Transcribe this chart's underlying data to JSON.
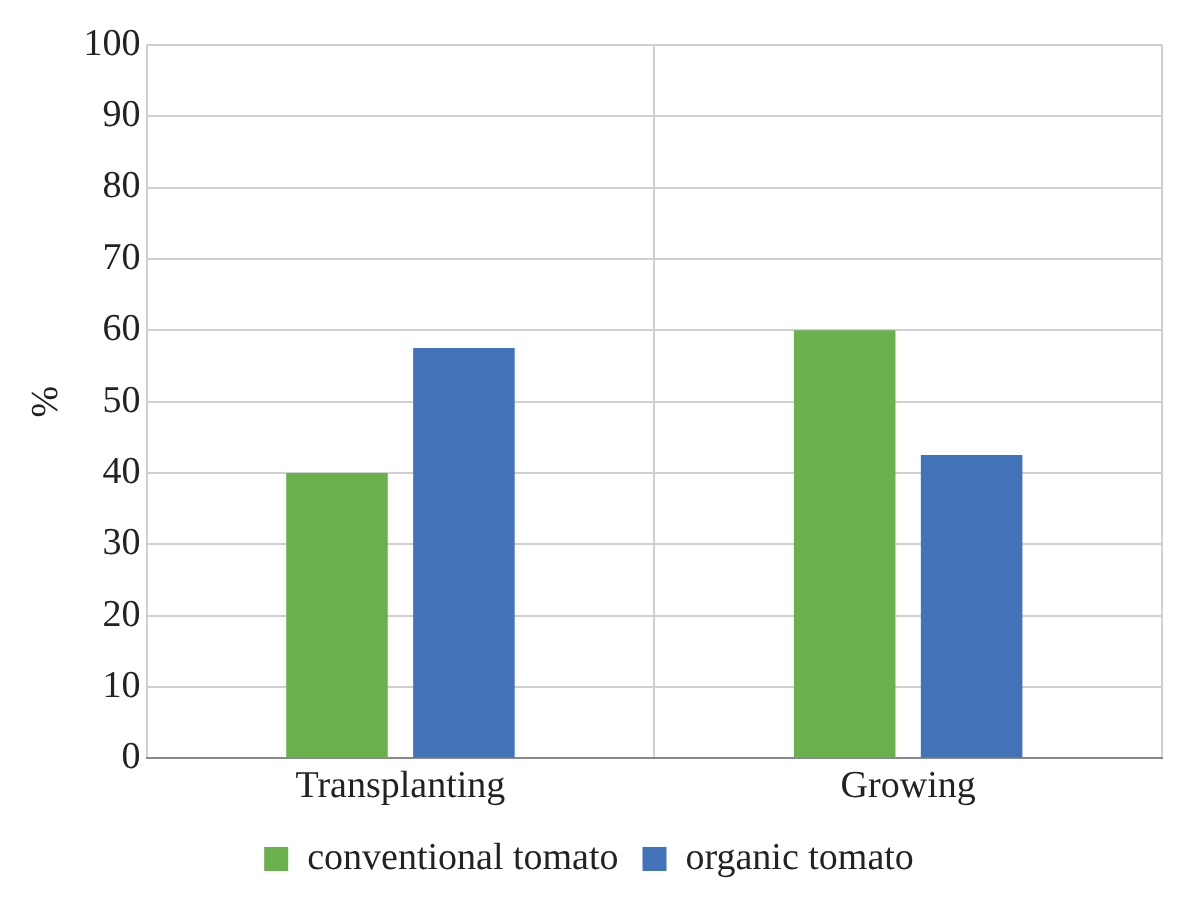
{
  "chart_data": {
    "type": "bar",
    "ylabel": "%",
    "categories": [
      "Transplanting",
      "Growing"
    ],
    "series": [
      {
        "name": "conventional tomato",
        "color": "#6ab04c",
        "values": [
          40,
          60
        ]
      },
      {
        "name": "organic tomato",
        "color": "#4272b8",
        "values": [
          57.5,
          42.5
        ]
      }
    ],
    "ylim": [
      0,
      100
    ],
    "yticks": [
      0,
      10,
      20,
      30,
      40,
      50,
      60,
      70,
      80,
      90,
      100
    ],
    "grid": true,
    "legend": "bottom"
  }
}
